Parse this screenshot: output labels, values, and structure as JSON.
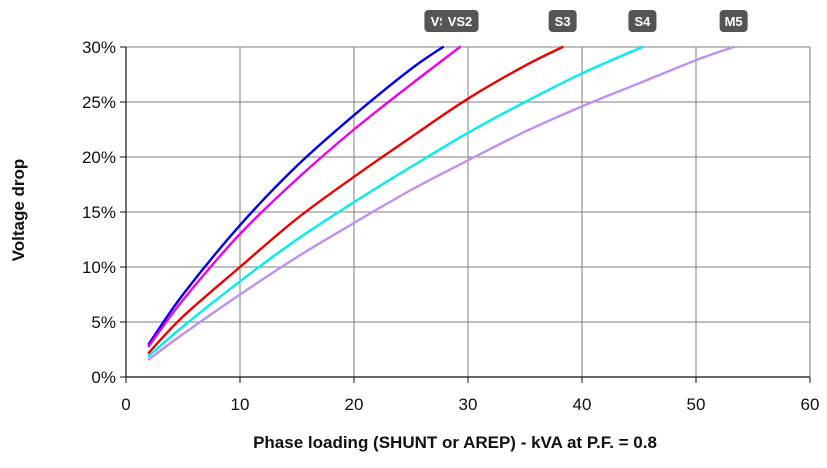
{
  "chart_data": {
    "type": "line",
    "title": "",
    "xlabel": "Phase loading (SHUNT or AREP) - kVA at P.F. = 0.8",
    "ylabel": "Voltage drop",
    "xlim": [
      0,
      60
    ],
    "ylim": [
      0,
      30
    ],
    "x_ticks": [
      0,
      10,
      20,
      30,
      40,
      50,
      60
    ],
    "x_tick_labels": [
      "0",
      "10",
      "20",
      "30",
      "40",
      "50",
      "60"
    ],
    "y_ticks": [
      0,
      5,
      10,
      15,
      20,
      25,
      30
    ],
    "y_tick_labels": [
      "0%",
      "5%",
      "10%",
      "15%",
      "20%",
      "25%",
      "30%"
    ],
    "grid": true,
    "legend": "curve-end labels along top",
    "series": [
      {
        "name": "VS1",
        "color": "#0000ee",
        "x": [
          2,
          5,
          10,
          15,
          20,
          25,
          27.8
        ],
        "y": [
          3.0,
          7.5,
          13.8,
          19.2,
          23.8,
          28.0,
          30
        ]
      },
      {
        "name": "VS2",
        "color": "#ee00ee",
        "x": [
          2,
          5,
          10,
          15,
          20,
          25,
          29.3
        ],
        "y": [
          2.8,
          7.0,
          13.0,
          18.0,
          22.5,
          26.6,
          30
        ]
      },
      {
        "name": "S3",
        "color": "#ee0000",
        "x": [
          2,
          5,
          10,
          15,
          20,
          25,
          30,
          35,
          38.3
        ],
        "y": [
          2.2,
          5.5,
          10.0,
          14.4,
          18.2,
          21.8,
          25.3,
          28.3,
          30
        ]
      },
      {
        "name": "S4",
        "color": "#00eeee",
        "x": [
          2,
          5,
          10,
          15,
          20,
          25,
          30,
          35,
          40,
          45.3
        ],
        "y": [
          1.9,
          4.6,
          8.7,
          12.5,
          15.9,
          19.1,
          22.2,
          25.0,
          27.6,
          30
        ]
      },
      {
        "name": "M5",
        "color": "#c090f0",
        "x": [
          2,
          5,
          10,
          15,
          20,
          25,
          30,
          35,
          40,
          45,
          50,
          53.3
        ],
        "y": [
          1.6,
          3.9,
          7.5,
          10.9,
          14.0,
          17.0,
          19.7,
          22.3,
          24.6,
          26.7,
          28.8,
          30
        ]
      }
    ]
  },
  "colors": {
    "grid": "#7f7f7f",
    "axis": "#111111",
    "badge": "#555555"
  }
}
